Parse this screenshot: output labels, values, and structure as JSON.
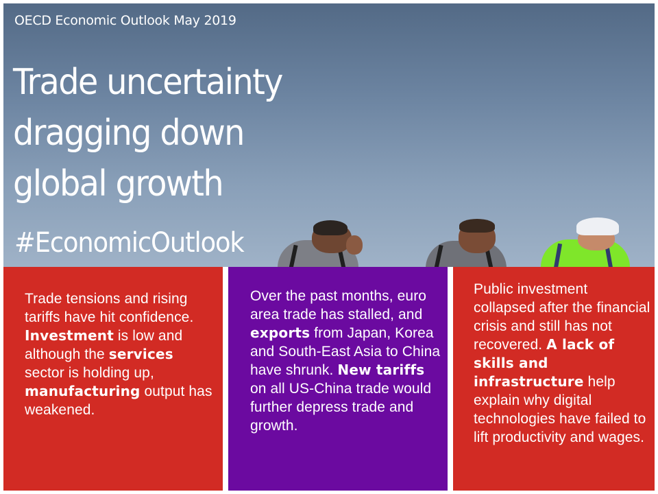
{
  "header": {
    "eyebrow": "OECD Economic Outlook May 2019",
    "headline_lines": [
      "Trade uncertainty",
      "dragging down",
      "global growth"
    ],
    "hashtag": "#EconomicOutlook"
  },
  "panels": [
    {
      "color": "#d22b24",
      "segments": [
        {
          "text": "Trade tensions and rising tariffs have hit confidence. ",
          "bold": false
        },
        {
          "text": "Investment",
          "bold": true
        },
        {
          "text": " is low and although the ",
          "bold": false
        },
        {
          "text": "services",
          "bold": true
        },
        {
          "text": " sector is holding up, ",
          "bold": false
        },
        {
          "text": "manufacturing",
          "bold": true
        },
        {
          "text": " output has weakened.",
          "bold": false
        }
      ]
    },
    {
      "color": "#6b0aa0",
      "segments": [
        {
          "text": "Over the past months, euro area trade has stalled, and ",
          "bold": false
        },
        {
          "text": "exports",
          "bold": true
        },
        {
          "text": " from Japan, Korea and South-East Asia to China have shrunk. ",
          "bold": false
        },
        {
          "text": "New tariffs",
          "bold": true
        },
        {
          "text": " on all US-China trade would further depress trade and growth.",
          "bold": false
        }
      ]
    },
    {
      "color": "#d22b24",
      "segments": [
        {
          "text": "Public investment collapsed after the financial crisis and still has not recovered. ",
          "bold": false
        },
        {
          "text": "A lack of skills and infrastructure",
          "bold": true
        },
        {
          "text": " help explain why digital technologies have failed to lift productivity and wages.",
          "bold": false
        }
      ]
    }
  ]
}
